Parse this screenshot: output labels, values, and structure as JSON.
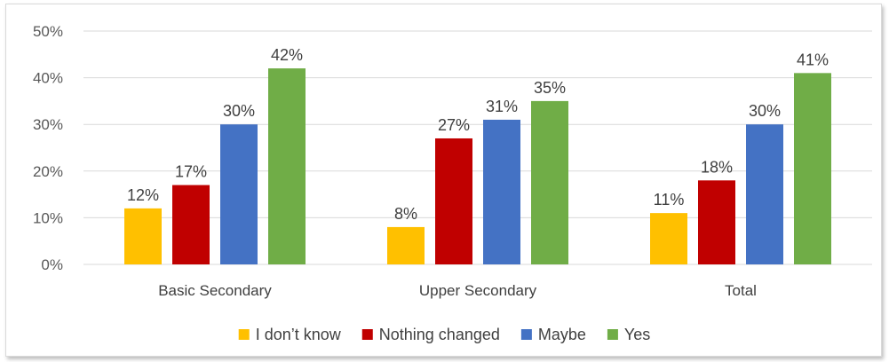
{
  "chart_data": {
    "type": "bar",
    "categories": [
      "Basic Secondary",
      "Upper Secondary",
      "Total"
    ],
    "series": [
      {
        "name": "I don’t know",
        "color": "#FFC000",
        "values": [
          12,
          8,
          11
        ],
        "labels": [
          "12%",
          "8%",
          "11%"
        ]
      },
      {
        "name": "Nothing changed",
        "color": "#C00000",
        "values": [
          17,
          27,
          18
        ],
        "labels": [
          "17%",
          "27%",
          "18%"
        ]
      },
      {
        "name": "Maybe",
        "color": "#4472C4",
        "values": [
          30,
          31,
          30
        ],
        "labels": [
          "30%",
          "31%",
          "30%"
        ]
      },
      {
        "name": "Yes",
        "color": "#70AD47",
        "values": [
          42,
          35,
          41
        ],
        "labels": [
          "42%",
          "35%",
          "41%"
        ]
      }
    ],
    "yticks": [
      0,
      10,
      20,
      30,
      40,
      50
    ],
    "ytick_labels": [
      "0%",
      "10%",
      "20%",
      "30%",
      "40%",
      "50%"
    ],
    "ylim": [
      0,
      50
    ],
    "grid": true,
    "legend_position": "bottom",
    "title": "",
    "xlabel": "",
    "ylabel": ""
  }
}
